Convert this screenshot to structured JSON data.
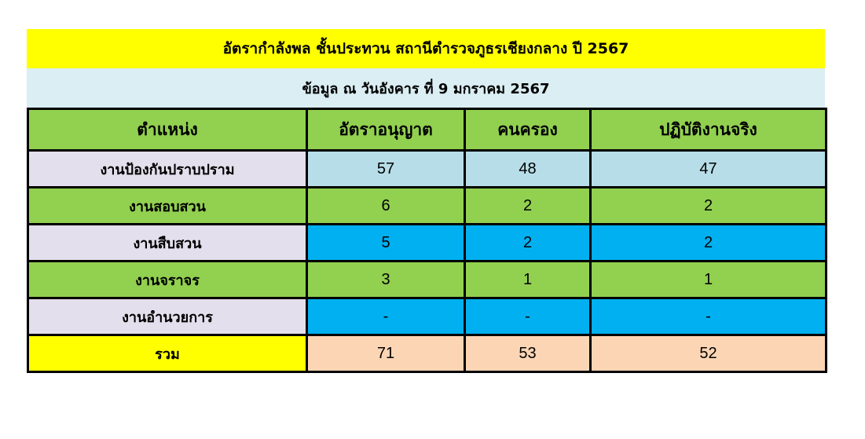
{
  "title": "อัตรากำลังพล ชั้นประทวน สถานีตำรวจภูธรเชียงกลาง ปี 2567",
  "subtitle": "ข้อมูล ณ วันอังคาร ที่ 9 มกราคม 2567",
  "headers": [
    "ตำแหน่ง",
    "อัตราอนุญาต",
    "คนครอง",
    "ปฏิบัติงานจริง"
  ],
  "rows": [
    {
      "cells": [
        "งานป้องกันปราบปราม",
        "57",
        "48",
        "47"
      ],
      "label_color": "#E4DFEC",
      "value_color": "#B7DEE8"
    },
    {
      "cells": [
        "งานสอบสวน",
        "6",
        "2",
        "2"
      ],
      "label_color": "#92D050",
      "value_color": "#92D050"
    },
    {
      "cells": [
        "งานสืบสวน",
        "5",
        "2",
        "2"
      ],
      "label_color": "#E4DFEC",
      "value_color": "#00B0F0"
    },
    {
      "cells": [
        "งานจราจร",
        "3",
        "1",
        "1"
      ],
      "label_color": "#92D050",
      "value_color": "#92D050"
    },
    {
      "cells": [
        "งานอำนวยการ",
        "-",
        "-",
        "-"
      ],
      "label_color": "#E4DFEC",
      "value_color": "#00B0F0"
    },
    {
      "cells": [
        "รวม",
        "71",
        "53",
        "52"
      ],
      "label_color": "#FFFF00",
      "value_color": "#FCD5B4"
    }
  ]
}
